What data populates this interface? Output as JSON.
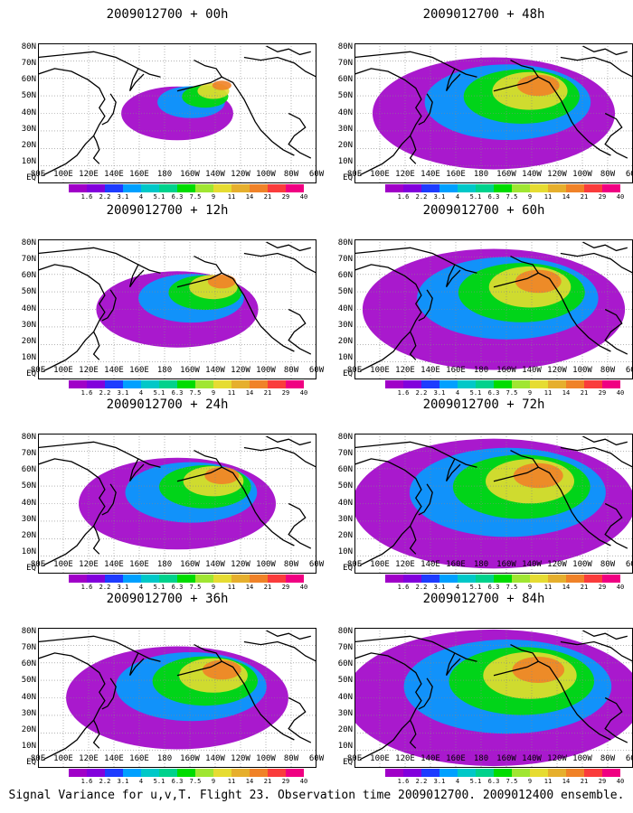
{
  "figure": {
    "caption": "Signal Variance for u,v,T. Flight 23. Observation time 2009012700. 2009012400 ensemble.",
    "panels": [
      {
        "title": "2009012700 + 00h",
        "lead": "00h",
        "spread": 0.18
      },
      {
        "title": "2009012700 + 48h",
        "lead": "48h",
        "spread": 0.7
      },
      {
        "title": "2009012700 + 12h",
        "lead": "12h",
        "spread": 0.38
      },
      {
        "title": "2009012700 + 60h",
        "lead": "60h",
        "spread": 0.78
      },
      {
        "title": "2009012700 + 24h",
        "lead": "24h",
        "spread": 0.52
      },
      {
        "title": "2009012700 + 72h",
        "lead": "72h",
        "spread": 0.86
      },
      {
        "title": "2009012700 + 36h",
        "lead": "36h",
        "spread": 0.62
      },
      {
        "title": "2009012700 + 84h",
        "lead": "84h",
        "spread": 0.92
      }
    ],
    "lat_labels": [
      "80N",
      "70N",
      "60N",
      "50N",
      "40N",
      "30N",
      "20N",
      "10N",
      "EQ"
    ],
    "lon_labels": [
      "80E",
      "100E",
      "120E",
      "140E",
      "160E",
      "180",
      "160W",
      "140W",
      "120W",
      "100W",
      "80W",
      "60W"
    ],
    "colorbar": {
      "levels": [
        "1.6",
        "2.2",
        "3.1",
        "4",
        "5.1",
        "6.3",
        "7.5",
        "9",
        "11",
        "14",
        "21",
        "29",
        "40"
      ],
      "colors": [
        "#a000c8",
        "#8200dc",
        "#1e3cff",
        "#00a0ff",
        "#00c8c8",
        "#00d28c",
        "#00dc00",
        "#a0e632",
        "#e6dc32",
        "#e6af2d",
        "#f08228",
        "#fa3c3c",
        "#f00082"
      ]
    }
  }
}
